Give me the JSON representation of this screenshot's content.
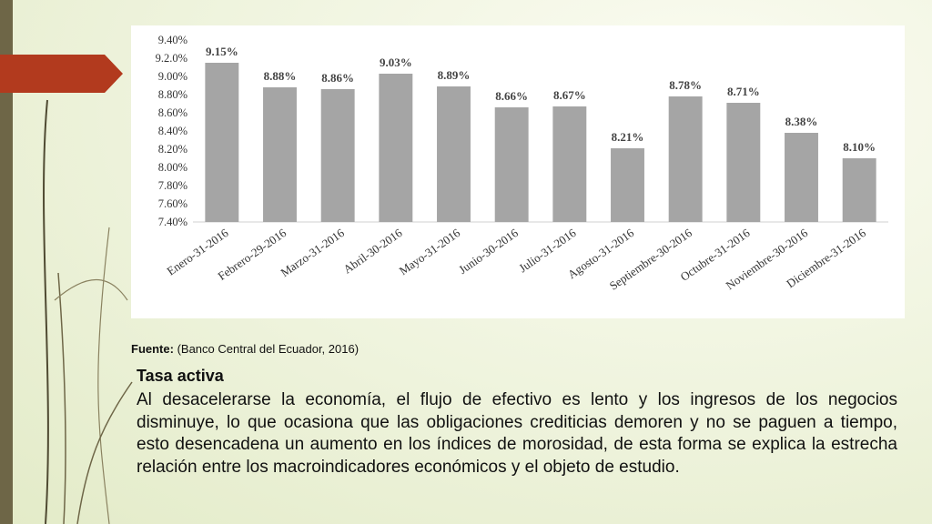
{
  "chart_data": {
    "type": "bar",
    "categories": [
      "Enero-31-2016",
      "Febrero-29-2016",
      "Marzo-31-2016",
      "Abril-30-2016",
      "Mayo-31-2016",
      "Junio-30-2016",
      "Julio-31-2016",
      "Agosto-31-2016",
      "Septiembre-30-2016",
      "Octubre-31-2016",
      "Noviembre-30-2016",
      "Diciembre-31-2016"
    ],
    "values": [
      9.15,
      8.88,
      8.86,
      9.03,
      8.89,
      8.66,
      8.67,
      8.21,
      8.78,
      8.71,
      8.38,
      8.1
    ],
    "value_labels": [
      "9.15%",
      "8.88%",
      "8.86%",
      "9.03%",
      "8.89%",
      "8.66%",
      "8.67%",
      "8.21%",
      "8.78%",
      "8.71%",
      "8.38%",
      "8.10%"
    ],
    "yticks": [
      "9.40%",
      "9.2.0%",
      "9.00%",
      "8.80%",
      "8.60%",
      "8.40%",
      "8.20%",
      "8.00%",
      "7.80%",
      "7.60%",
      "7.40%"
    ],
    "ylim": [
      7.4,
      9.4
    ],
    "grid": false,
    "bar_color": "#a5a5a5",
    "title": "",
    "xlabel": "",
    "ylabel": ""
  },
  "source": {
    "label": "Fuente:",
    "text": "(Banco Central del Ecuador, 2016)"
  },
  "section": {
    "heading": "Tasa activa",
    "body": "Al desacelerarse la economía, el flujo de efectivo es lento y los ingresos de los negocios disminuye, lo que ocasiona que las obligaciones crediticias demoren y no se paguen a tiempo, esto desencadena un aumento en los índices de morosidad, de esta forma se explica la estrecha relación entre los macroindicadores económicos y el objeto de estudio."
  },
  "colors": {
    "accent": "#b23a1e",
    "left_bar": "#6e6647",
    "text": "#111111"
  }
}
